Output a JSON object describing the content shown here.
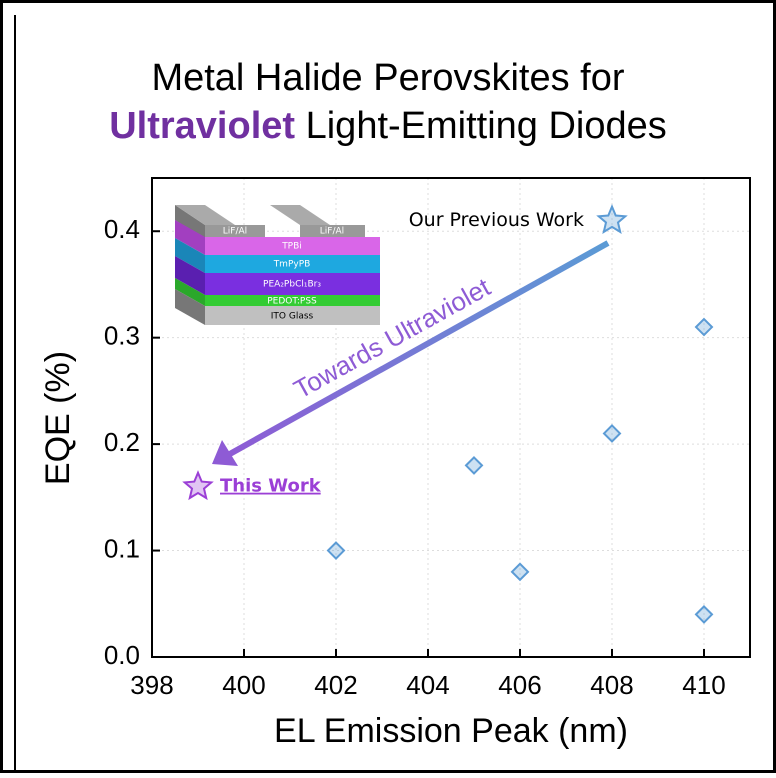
{
  "chart_data": {
    "type": "scatter",
    "title": "Metal Halide Perovskites for",
    "title_highlight": "Ultraviolet",
    "title_rest": "Light-Emitting Diodes",
    "title_highlight_color": "#7030a0",
    "x_label": "EL Emission Peak (nm)",
    "y_label": "EQE (%)",
    "xlim": [
      398,
      411
    ],
    "xticks": [
      398,
      400,
      402,
      404,
      406,
      408,
      410
    ],
    "ylim": [
      0,
      0.45
    ],
    "yticks": [
      {
        "value": 0,
        "label": "0.0"
      },
      0.1,
      0.2,
      0.3,
      0.4
    ],
    "grid": true,
    "series": [
      {
        "marker": "diamond",
        "color": "#5b9bd5",
        "x": [
          402,
          405,
          406,
          408,
          410,
          410
        ],
        "values": [
          0.1,
          0.18,
          0.08,
          0.21,
          0.31,
          0.04
        ]
      },
      {
        "name": "Our Previous Work",
        "marker": "star",
        "color": "#5b9bd5",
        "x": [
          408
        ],
        "values": [
          0.41
        ]
      },
      {
        "name": "This Work",
        "marker": "star",
        "color": "#9b3fd6",
        "x": [
          399
        ],
        "values": [
          0.16
        ]
      }
    ],
    "annotation": "Towards Ultraviolet",
    "inset_layers": [
      "LiF/Al",
      "LiF/Al",
      "TPBi",
      "TmPyPB",
      "PEA₂PbCl₁Br₃",
      "PEDOT:PSS",
      "ITO Glass"
    ]
  }
}
